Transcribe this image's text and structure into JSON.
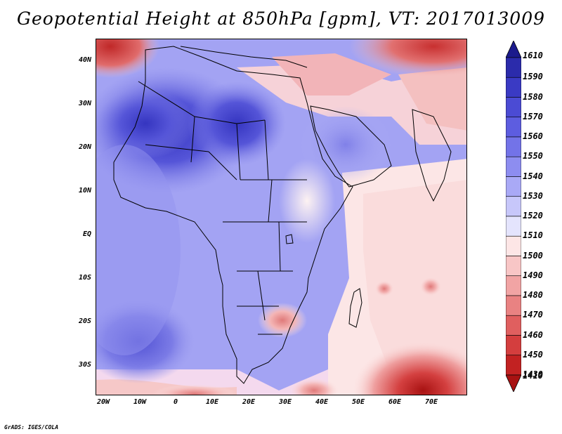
{
  "title": "Geopotential Height at 850hPa [gpm], VT: 2017013009",
  "credit": "GrADS: IGES/COLA",
  "lat_labels": [
    "40N",
    "30N",
    "20N",
    "10N",
    "EQ",
    "10S",
    "20S",
    "30S"
  ],
  "lon_labels": [
    "20W",
    "10W",
    "0",
    "10E",
    "20E",
    "30E",
    "40E",
    "50E",
    "60E",
    "70E"
  ],
  "colorbar": {
    "levels": [
      "1610",
      "1590",
      "1580",
      "1570",
      "1560",
      "1550",
      "1540",
      "1530",
      "1520",
      "1510",
      "1500",
      "1490",
      "1480",
      "1470",
      "1460",
      "1450",
      "1430",
      "1410"
    ],
    "colors": [
      "#1b1a8c",
      "#2b2bab",
      "#3a3ac4",
      "#4b4bd4",
      "#5d5de0",
      "#7373e8",
      "#8d8df0",
      "#a9a9f6",
      "#c7c7fa",
      "#e4e4fd",
      "#fde6e6",
      "#f8c6c6",
      "#f1a4a4",
      "#e98282",
      "#e05f5f",
      "#d43e3e",
      "#c22222",
      "#a81212"
    ]
  },
  "colors": {
    "ocean_blue": "#8b8bee",
    "land_blue": "#a5a5f5",
    "deep_blue": "#5050d8",
    "white": "#f6f6ff",
    "light_red": "#f7c2c2",
    "dark_red": "#c02020"
  }
}
